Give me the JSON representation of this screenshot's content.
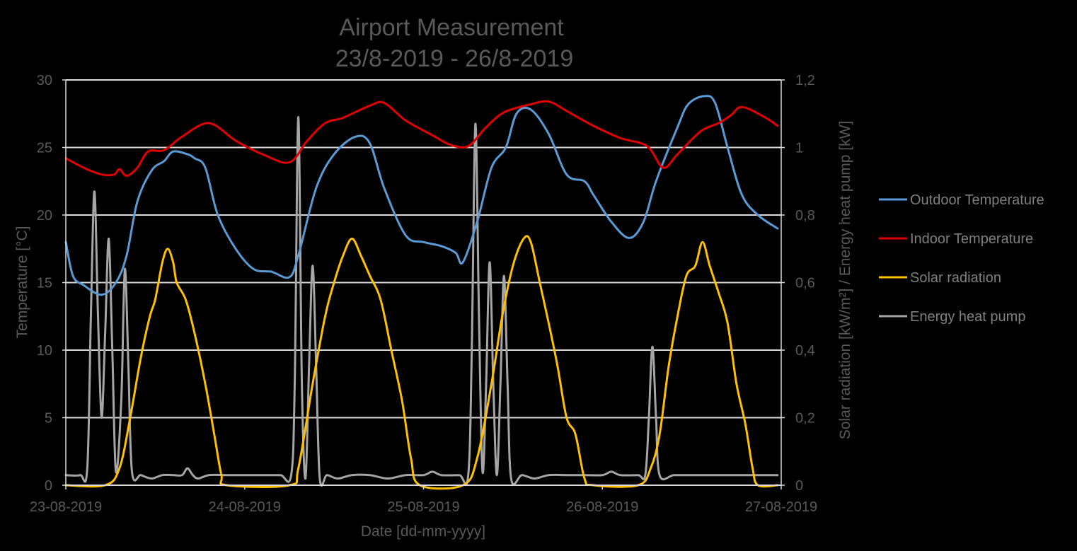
{
  "chart_data": {
    "type": "line",
    "title": [
      "Airport Measurement",
      "23/8-2019 - 26/8-2019"
    ],
    "xlabel": "Date [dd-mm-yyyy]",
    "ylabel_left": "Temperature [°C]",
    "ylabel_right": "Solar radiation [kW/m²] / Energy heat pump [kW]",
    "x_ticks": [
      "23-08-2019",
      "24-08-2019",
      "25-08-2019",
      "26-08-2019",
      "27-08-2019"
    ],
    "xlim": [
      0,
      4
    ],
    "y_left_ticks": [
      "0",
      "5",
      "10",
      "15",
      "20",
      "25",
      "30"
    ],
    "y_left_lim": [
      0,
      30
    ],
    "y_right_ticks": [
      "0",
      "0,2",
      "0,4",
      "0,6",
      "0,8",
      "1",
      "1,2"
    ],
    "y_right_lim": [
      0,
      1.2
    ],
    "grid": "horizontal",
    "legend_position": "right",
    "series": [
      {
        "name": "Outdoor Temperature",
        "axis": "left",
        "color": "#5b9bd5",
        "points": [
          [
            0,
            18
          ],
          [
            0.04,
            15.5
          ],
          [
            0.1,
            14.8
          ],
          [
            0.2,
            14.1
          ],
          [
            0.28,
            15
          ],
          [
            0.34,
            17
          ],
          [
            0.4,
            21
          ],
          [
            0.48,
            23.3
          ],
          [
            0.55,
            24
          ],
          [
            0.6,
            24.7
          ],
          [
            0.68,
            24.5
          ],
          [
            0.72,
            24.2
          ],
          [
            0.78,
            23.5
          ],
          [
            0.85,
            20
          ],
          [
            0.95,
            17.5
          ],
          [
            1.05,
            16
          ],
          [
            1.15,
            15.8
          ],
          [
            1.25,
            15.4
          ],
          [
            1.3,
            17
          ],
          [
            1.4,
            22
          ],
          [
            1.5,
            24.5
          ],
          [
            1.62,
            25.8
          ],
          [
            1.7,
            25.3
          ],
          [
            1.78,
            22
          ],
          [
            1.9,
            18.5
          ],
          [
            2.0,
            18
          ],
          [
            2.1,
            17.7
          ],
          [
            2.18,
            17.2
          ],
          [
            2.22,
            16.5
          ],
          [
            2.3,
            19.5
          ],
          [
            2.38,
            23.5
          ],
          [
            2.46,
            25
          ],
          [
            2.52,
            27.5
          ],
          [
            2.6,
            27.8
          ],
          [
            2.7,
            26
          ],
          [
            2.8,
            23
          ],
          [
            2.9,
            22.5
          ],
          [
            2.95,
            21.5
          ],
          [
            3.05,
            19.5
          ],
          [
            3.15,
            18.3
          ],
          [
            3.23,
            19.5
          ],
          [
            3.3,
            22.5
          ],
          [
            3.42,
            26.5
          ],
          [
            3.48,
            28.2
          ],
          [
            3.57,
            28.8
          ],
          [
            3.63,
            28.3
          ],
          [
            3.7,
            25
          ],
          [
            3.78,
            21.5
          ],
          [
            3.87,
            20
          ],
          [
            3.98,
            19
          ]
        ]
      },
      {
        "name": "Indoor Temperature",
        "axis": "left",
        "color": "#e00000",
        "points": [
          [
            0,
            24.2
          ],
          [
            0.1,
            23.5
          ],
          [
            0.2,
            23
          ],
          [
            0.27,
            23
          ],
          [
            0.3,
            23.4
          ],
          [
            0.34,
            22.9
          ],
          [
            0.4,
            23.5
          ],
          [
            0.46,
            24.7
          ],
          [
            0.55,
            24.8
          ],
          [
            0.65,
            25.8
          ],
          [
            0.8,
            26.8
          ],
          [
            0.95,
            25.5
          ],
          [
            1.1,
            24.5
          ],
          [
            1.25,
            23.9
          ],
          [
            1.35,
            25.5
          ],
          [
            1.45,
            26.8
          ],
          [
            1.55,
            27.2
          ],
          [
            1.7,
            28.1
          ],
          [
            1.78,
            28.3
          ],
          [
            1.9,
            27
          ],
          [
            2.05,
            25.9
          ],
          [
            2.15,
            25.2
          ],
          [
            2.25,
            25.1
          ],
          [
            2.35,
            26.5
          ],
          [
            2.45,
            27.6
          ],
          [
            2.6,
            28.2
          ],
          [
            2.7,
            28.4
          ],
          [
            2.8,
            27.7
          ],
          [
            2.95,
            26.6
          ],
          [
            3.1,
            25.7
          ],
          [
            3.25,
            25.1
          ],
          [
            3.34,
            23.5
          ],
          [
            3.42,
            24.5
          ],
          [
            3.55,
            26.2
          ],
          [
            3.65,
            26.8
          ],
          [
            3.72,
            27.4
          ],
          [
            3.78,
            28
          ],
          [
            3.9,
            27.3
          ],
          [
            3.98,
            26.6
          ]
        ]
      },
      {
        "name": "Solar radiation",
        "axis": "right",
        "color": "#ffc000",
        "points": [
          [
            0,
            0
          ],
          [
            0.22,
            0
          ],
          [
            0.3,
            0.05
          ],
          [
            0.36,
            0.2
          ],
          [
            0.42,
            0.38
          ],
          [
            0.47,
            0.5
          ],
          [
            0.5,
            0.55
          ],
          [
            0.54,
            0.66
          ],
          [
            0.57,
            0.7
          ],
          [
            0.6,
            0.66
          ],
          [
            0.62,
            0.6
          ],
          [
            0.67,
            0.55
          ],
          [
            0.72,
            0.45
          ],
          [
            0.78,
            0.3
          ],
          [
            0.83,
            0.15
          ],
          [
            0.87,
            0.03
          ],
          [
            0.9,
            0
          ],
          [
            1.25,
            0
          ],
          [
            1.3,
            0.05
          ],
          [
            1.38,
            0.3
          ],
          [
            1.45,
            0.5
          ],
          [
            1.5,
            0.6
          ],
          [
            1.55,
            0.68
          ],
          [
            1.6,
            0.73
          ],
          [
            1.65,
            0.68
          ],
          [
            1.7,
            0.62
          ],
          [
            1.76,
            0.55
          ],
          [
            1.82,
            0.4
          ],
          [
            1.88,
            0.25
          ],
          [
            1.93,
            0.08
          ],
          [
            1.98,
            0
          ],
          [
            2.22,
            0
          ],
          [
            2.3,
            0.08
          ],
          [
            2.38,
            0.3
          ],
          [
            2.44,
            0.5
          ],
          [
            2.5,
            0.65
          ],
          [
            2.56,
            0.73
          ],
          [
            2.6,
            0.72
          ],
          [
            2.65,
            0.6
          ],
          [
            2.7,
            0.48
          ],
          [
            2.75,
            0.35
          ],
          [
            2.8,
            0.2
          ],
          [
            2.85,
            0.15
          ],
          [
            2.9,
            0.02
          ],
          [
            2.95,
            0
          ],
          [
            3.2,
            0
          ],
          [
            3.27,
            0.05
          ],
          [
            3.32,
            0.15
          ],
          [
            3.37,
            0.35
          ],
          [
            3.42,
            0.5
          ],
          [
            3.47,
            0.62
          ],
          [
            3.52,
            0.65
          ],
          [
            3.56,
            0.72
          ],
          [
            3.6,
            0.65
          ],
          [
            3.65,
            0.57
          ],
          [
            3.7,
            0.48
          ],
          [
            3.75,
            0.3
          ],
          [
            3.8,
            0.18
          ],
          [
            3.84,
            0.05
          ],
          [
            3.87,
            0
          ],
          [
            3.98,
            0
          ]
        ]
      },
      {
        "name": "Energy heat pump",
        "axis": "right",
        "color": "#a5a5a5",
        "points": [
          [
            0,
            0.03
          ],
          [
            0.08,
            0.03
          ],
          [
            0.12,
            0.05
          ],
          [
            0.14,
            0.5
          ],
          [
            0.16,
            0.87
          ],
          [
            0.18,
            0.5
          ],
          [
            0.2,
            0.2
          ],
          [
            0.22,
            0.45
          ],
          [
            0.24,
            0.73
          ],
          [
            0.26,
            0.4
          ],
          [
            0.28,
            0.04
          ],
          [
            0.31,
            0.25
          ],
          [
            0.33,
            0.64
          ],
          [
            0.35,
            0.35
          ],
          [
            0.37,
            0.04
          ],
          [
            0.42,
            0.03
          ],
          [
            0.48,
            0.02
          ],
          [
            0.54,
            0.03
          ],
          [
            0.6,
            0.03
          ],
          [
            0.65,
            0.03
          ],
          [
            0.68,
            0.05
          ],
          [
            0.71,
            0.03
          ],
          [
            0.74,
            0.02
          ],
          [
            0.8,
            0.03
          ],
          [
            0.9,
            0.03
          ],
          [
            1.0,
            0.03
          ],
          [
            1.1,
            0.03
          ],
          [
            1.2,
            0.03
          ],
          [
            1.26,
            0.03
          ],
          [
            1.28,
            0.3
          ],
          [
            1.3,
            1.09
          ],
          [
            1.32,
            0.3
          ],
          [
            1.34,
            0.02
          ],
          [
            1.36,
            0.35
          ],
          [
            1.38,
            0.65
          ],
          [
            1.4,
            0.35
          ],
          [
            1.42,
            0.02
          ],
          [
            1.46,
            0.03
          ],
          [
            1.52,
            0.02
          ],
          [
            1.6,
            0.03
          ],
          [
            1.7,
            0.03
          ],
          [
            1.8,
            0.02
          ],
          [
            1.9,
            0.03
          ],
          [
            2.0,
            0.03
          ],
          [
            2.05,
            0.04
          ],
          [
            2.1,
            0.03
          ],
          [
            2.2,
            0.03
          ],
          [
            2.25,
            0.03
          ],
          [
            2.27,
            0.4
          ],
          [
            2.29,
            1.07
          ],
          [
            2.31,
            0.5
          ],
          [
            2.33,
            0.04
          ],
          [
            2.35,
            0.3
          ],
          [
            2.37,
            0.66
          ],
          [
            2.39,
            0.3
          ],
          [
            2.41,
            0.03
          ],
          [
            2.43,
            0.3
          ],
          [
            2.45,
            0.62
          ],
          [
            2.47,
            0.3
          ],
          [
            2.49,
            0.02
          ],
          [
            2.55,
            0.03
          ],
          [
            2.62,
            0.02
          ],
          [
            2.7,
            0.03
          ],
          [
            2.8,
            0.03
          ],
          [
            2.9,
            0.03
          ],
          [
            3.0,
            0.03
          ],
          [
            3.05,
            0.04
          ],
          [
            3.1,
            0.03
          ],
          [
            3.2,
            0.03
          ],
          [
            3.24,
            0.03
          ],
          [
            3.26,
            0.2
          ],
          [
            3.28,
            0.41
          ],
          [
            3.3,
            0.2
          ],
          [
            3.32,
            0.03
          ],
          [
            3.4,
            0.03
          ],
          [
            3.5,
            0.03
          ],
          [
            3.6,
            0.03
          ],
          [
            3.7,
            0.03
          ],
          [
            3.8,
            0.03
          ],
          [
            3.9,
            0.03
          ],
          [
            3.98,
            0.03
          ]
        ]
      }
    ]
  }
}
